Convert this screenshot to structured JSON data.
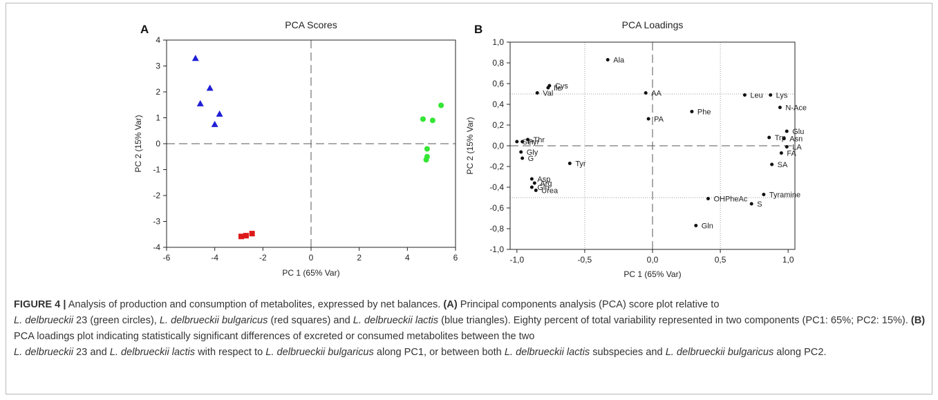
{
  "chart_data": [
    {
      "type": "scatter",
      "panel": "A",
      "title": "PCA Scores",
      "xlabel": "PC 1 (65% Var)",
      "ylabel": "PC 2 (15% Var)",
      "xlim": [
        -6,
        6
      ],
      "ylim": [
        -4,
        4
      ],
      "xticks": [
        -6,
        -4,
        -2,
        0,
        2,
        4,
        6
      ],
      "yticks": [
        -4,
        -3,
        -2,
        -1,
        0,
        1,
        2,
        3,
        4
      ],
      "series": [
        {
          "marker": "triangle",
          "color": "#1f1fd6",
          "points": [
            [
              -4.8,
              3.3
            ],
            [
              -4.2,
              2.15
            ],
            [
              -4.6,
              1.55
            ],
            [
              -3.8,
              1.15
            ],
            [
              -4.0,
              0.75
            ]
          ]
        },
        {
          "marker": "circle",
          "color": "#33e633",
          "points": [
            [
              5.4,
              1.48
            ],
            [
              4.65,
              0.95
            ],
            [
              5.05,
              0.9
            ],
            [
              4.82,
              -0.2
            ],
            [
              4.82,
              -0.5
            ],
            [
              4.78,
              -0.62
            ]
          ]
        },
        {
          "marker": "square",
          "color": "#dd1a1a",
          "points": [
            [
              -2.45,
              -3.47
            ],
            [
              -2.7,
              -3.55
            ],
            [
              -2.9,
              -3.58
            ]
          ]
        }
      ],
      "reference_lines": {
        "x": 0,
        "y": 0,
        "style": "dashed"
      }
    },
    {
      "type": "scatter",
      "panel": "B",
      "title": "PCA Loadings",
      "xlabel": "PC 1 (65% Var)",
      "ylabel": "PC 2 (15% Var)",
      "xlim": [
        -1.05,
        1.05
      ],
      "ylim": [
        -1.0,
        1.0
      ],
      "xticks": [
        -1.0,
        -0.5,
        0.0,
        0.5,
        1.0
      ],
      "xticklabels": [
        "-1,0",
        "-0,5",
        "0,0",
        "0,5",
        "1,0"
      ],
      "yticks": [
        -1.0,
        -0.8,
        -0.6,
        -0.4,
        -0.2,
        0.0,
        0.2,
        0.4,
        0.6,
        0.8,
        1.0
      ],
      "yticklabels": [
        "-1,0",
        "-0,8",
        "-0,6",
        "-0,4",
        "-0,2",
        "0,0",
        "0,2",
        "0,4",
        "0,6",
        "0,8",
        "1,0"
      ],
      "dotted_lines": {
        "x": [
          -0.5,
          0.5
        ],
        "y": [
          -0.5,
          0.5
        ]
      },
      "reference_lines": {
        "x": 0,
        "y": 0,
        "style": "dashed"
      },
      "points": [
        {
          "label": "Ala",
          "x": -0.33,
          "y": 0.83
        },
        {
          "label": "Cys",
          "x": -0.76,
          "y": 0.58
        },
        {
          "label": "Ile",
          "x": -0.77,
          "y": 0.56
        },
        {
          "label": "Val",
          "x": -0.85,
          "y": 0.51
        },
        {
          "label": "AA",
          "x": -0.05,
          "y": 0.51
        },
        {
          "label": "Leu",
          "x": 0.68,
          "y": 0.49
        },
        {
          "label": "Lys",
          "x": 0.87,
          "y": 0.49
        },
        {
          "label": "N-Ace",
          "x": 0.94,
          "y": 0.37
        },
        {
          "label": "Phe",
          "x": 0.29,
          "y": 0.33
        },
        {
          "label": "PA",
          "x": -0.03,
          "y": 0.26
        },
        {
          "label": "Glu",
          "x": 0.99,
          "y": 0.14
        },
        {
          "label": "Trp",
          "x": 0.86,
          "y": 0.08
        },
        {
          "label": "Asn",
          "x": 0.97,
          "y": 0.07
        },
        {
          "label": "LA",
          "x": 0.99,
          "y": -0.01
        },
        {
          "label": "FA",
          "x": 0.95,
          "y": -0.07
        },
        {
          "label": "SA",
          "x": 0.88,
          "y": -0.18
        },
        {
          "label": "Thr",
          "x": -0.92,
          "y": 0.06
        },
        {
          "label": "Pyr",
          "x": -0.96,
          "y": 0.04
        },
        {
          "label": "Ser",
          "x": -1.0,
          "y": 0.04
        },
        {
          "label": "Gly",
          "x": -0.97,
          "y": -0.06
        },
        {
          "label": "G",
          "x": -0.96,
          "y": -0.12
        },
        {
          "label": "Tyr",
          "x": -0.61,
          "y": -0.17
        },
        {
          "label": "Asp",
          "x": -0.89,
          "y": -0.32
        },
        {
          "label": "Arg",
          "x": -0.87,
          "y": -0.36
        },
        {
          "label": "Gln",
          "x": -0.89,
          "y": -0.4
        },
        {
          "label": "Urea",
          "x": -0.86,
          "y": -0.43
        },
        {
          "label": "Tyramine",
          "x": 0.82,
          "y": -0.47
        },
        {
          "label": "OHPheAc",
          "x": 0.41,
          "y": -0.51
        },
        {
          "label": "S",
          "x": 0.73,
          "y": -0.56
        },
        {
          "label": "Gln",
          "x": 0.32,
          "y": -0.77
        }
      ]
    }
  ],
  "caption": {
    "label": "FIGURE 4 |",
    "s1": " Analysis of production and consumption of metabolites, expressed by net balances. ",
    "a_label": "(A)",
    "s2": " Principal components analysis (PCA) score plot relative to",
    "i1": "L. delbrueckii",
    "s3": " 23 (green circles), ",
    "i2": "L. delbrueckii bulgaricus",
    "s4": " (red squares) and ",
    "i3": "L. delbrueckii lactis",
    "s5": " (blue triangles). Eighty percent of total variability represented in two components (PC1: 65%; PC2: 15%). ",
    "b_label": "(B)",
    "s6": " PCA loadings plot indicating statistically significant differences of excreted or consumed metabolites between the two",
    "i4": "L. delbrueckii",
    "s7": " 23 and ",
    "i5": "L. delbrueckii lactis",
    "s8": " with respect to ",
    "i6": "L. delbrueckii bulgaricus",
    "s9": " along PC1, or between both ",
    "i7": "L. delbrueckii lactis",
    "s10": " subspecies and ",
    "i8": "L. delbrueckii bulgaricus",
    "s11": " along PC2."
  }
}
